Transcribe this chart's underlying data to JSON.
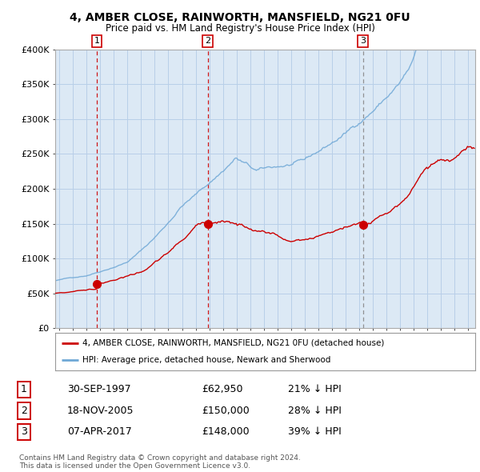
{
  "title_line1": "4, AMBER CLOSE, RAINWORTH, MANSFIELD, NG21 0FU",
  "title_line2": "Price paid vs. HM Land Registry's House Price Index (HPI)",
  "ylim": [
    0,
    400000
  ],
  "xlim_start": 1994.7,
  "xlim_end": 2025.5,
  "yticks": [
    0,
    50000,
    100000,
    150000,
    200000,
    250000,
    300000,
    350000,
    400000
  ],
  "ytick_labels": [
    "£0",
    "£50K",
    "£100K",
    "£150K",
    "£200K",
    "£250K",
    "£300K",
    "£350K",
    "£400K"
  ],
  "sale_dates": [
    1997.75,
    2005.88,
    2017.27
  ],
  "sale_prices": [
    62950,
    150000,
    148000
  ],
  "sale_labels": [
    "1",
    "2",
    "3"
  ],
  "sale_date_strs": [
    "30-SEP-1997",
    "18-NOV-2005",
    "07-APR-2017"
  ],
  "sale_price_strs": [
    "£62,950",
    "£150,000",
    "£148,000"
  ],
  "sale_hpi_strs": [
    "21% ↓ HPI",
    "28% ↓ HPI",
    "39% ↓ HPI"
  ],
  "vline_colors": [
    "#cc0000",
    "#cc0000",
    "#888888"
  ],
  "vline_styles": [
    "--",
    "--",
    "--"
  ],
  "hpi_color": "#6fa8d6",
  "sale_color": "#cc0000",
  "background_color": "#dce9f5",
  "grid_color": "#b8cfe8",
  "legend_label1": "4, AMBER CLOSE, RAINWORTH, MANSFIELD, NG21 0FU (detached house)",
  "legend_label2": "HPI: Average price, detached house, Newark and Sherwood",
  "footnote": "Contains HM Land Registry data © Crown copyright and database right 2024.\nThis data is licensed under the Open Government Licence v3.0."
}
